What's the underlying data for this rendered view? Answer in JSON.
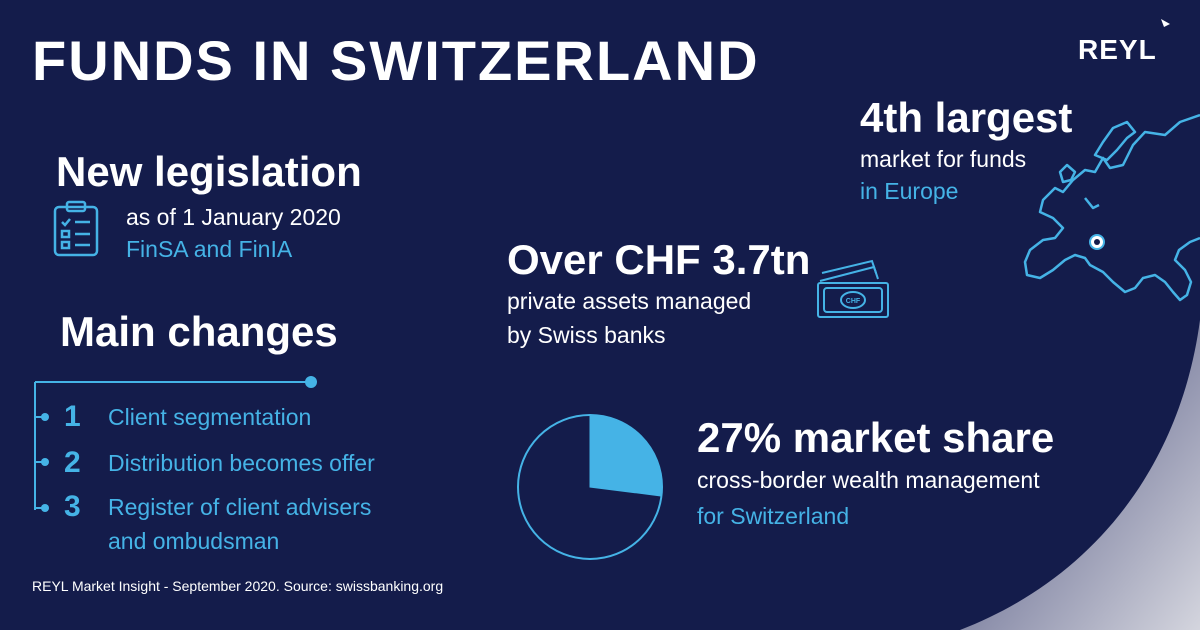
{
  "title": "FUNDS IN SWITZERLAND",
  "brand": {
    "logo_text": "REYL"
  },
  "legislation": {
    "heading": "New legislation",
    "date": "as of 1 January 2020",
    "laws": "FinSA and FinIA",
    "icon": "clipboard-checklist-icon"
  },
  "changes": {
    "heading": "Main changes",
    "items": [
      {
        "number": "1",
        "label": "Client segmentation"
      },
      {
        "number": "2",
        "label": "Distribution becomes offer"
      },
      {
        "number": "3",
        "label": "Register of client advisers",
        "label_line2": "and ombudsman"
      }
    ]
  },
  "europe": {
    "heading": "4th largest",
    "line1": "market for funds",
    "line2": "in Europe",
    "icon": "europe-map-icon"
  },
  "assets": {
    "heading": "Over CHF 3.7tn",
    "line1": "private assets managed",
    "line2": "by Swiss banks",
    "banknote_text": "CHF",
    "icon": "banknote-icon"
  },
  "share": {
    "heading": "27% market share",
    "line1": "cross-border wealth management",
    "line2": "for Switzerland",
    "percent": 27
  },
  "source": "REYL Market Insight - September 2020. Source: swissbanking.org",
  "colors": {
    "background": "#141c4b",
    "accent": "#45b3e6",
    "text": "#ffffff"
  }
}
